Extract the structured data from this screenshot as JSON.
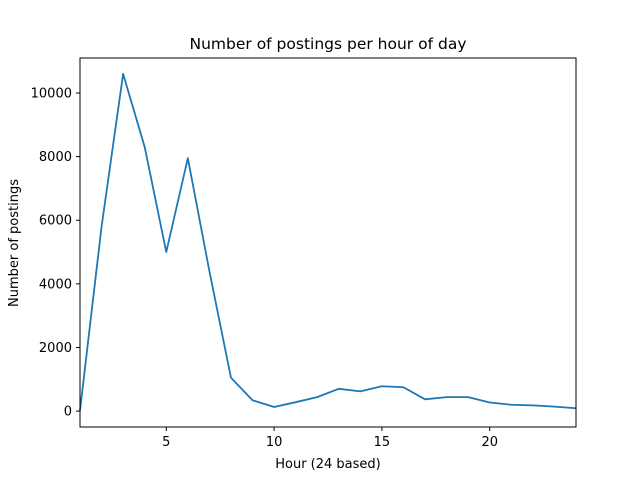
{
  "chart_data": {
    "type": "line",
    "title": "Number of postings per hour of day",
    "xlabel": "Hour (24 based)",
    "ylabel": "Number of postings",
    "xlim": [
      1,
      24
    ],
    "ylim": [
      -500,
      11100
    ],
    "xticks": [
      5,
      10,
      15,
      20
    ],
    "yticks": [
      0,
      2000,
      4000,
      6000,
      8000,
      10000
    ],
    "grid": false,
    "color": "#1f77b4",
    "series": [
      {
        "x": [
          1,
          2,
          3,
          4,
          5,
          6,
          7,
          8,
          9,
          10,
          11,
          12,
          13,
          14,
          15,
          16,
          17,
          18,
          19,
          20,
          21,
          22,
          23,
          24
        ],
        "values": [
          20,
          5800,
          10600,
          8300,
          5000,
          7950,
          4400,
          1050,
          340,
          130,
          280,
          440,
          700,
          620,
          780,
          750,
          370,
          440,
          440,
          270,
          200,
          180,
          140,
          90
        ]
      }
    ]
  }
}
